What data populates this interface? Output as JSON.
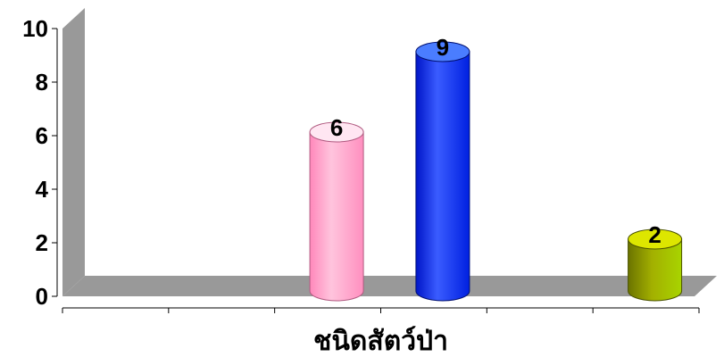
{
  "chart_data": {
    "type": "bar",
    "style": "3d-cylinder",
    "xlabel": "ชนิดสัตว์ป่า",
    "ylabel": "",
    "ylim": [
      0,
      10
    ],
    "yticks": [
      "0",
      "2",
      "4",
      "6",
      "8",
      "10"
    ],
    "grid": false,
    "legend": "none",
    "category_slots": 6,
    "values": [
      {
        "slot": 3,
        "value": 6,
        "label": "6",
        "color": "#ff99cc"
      },
      {
        "slot": 4,
        "value": 9,
        "label": "9",
        "color": "#0033ff"
      },
      {
        "slot": 6,
        "value": 2,
        "label": "2",
        "color": "#99aa00"
      }
    ],
    "wall_color": "#999999",
    "floor_color": "#999999"
  }
}
